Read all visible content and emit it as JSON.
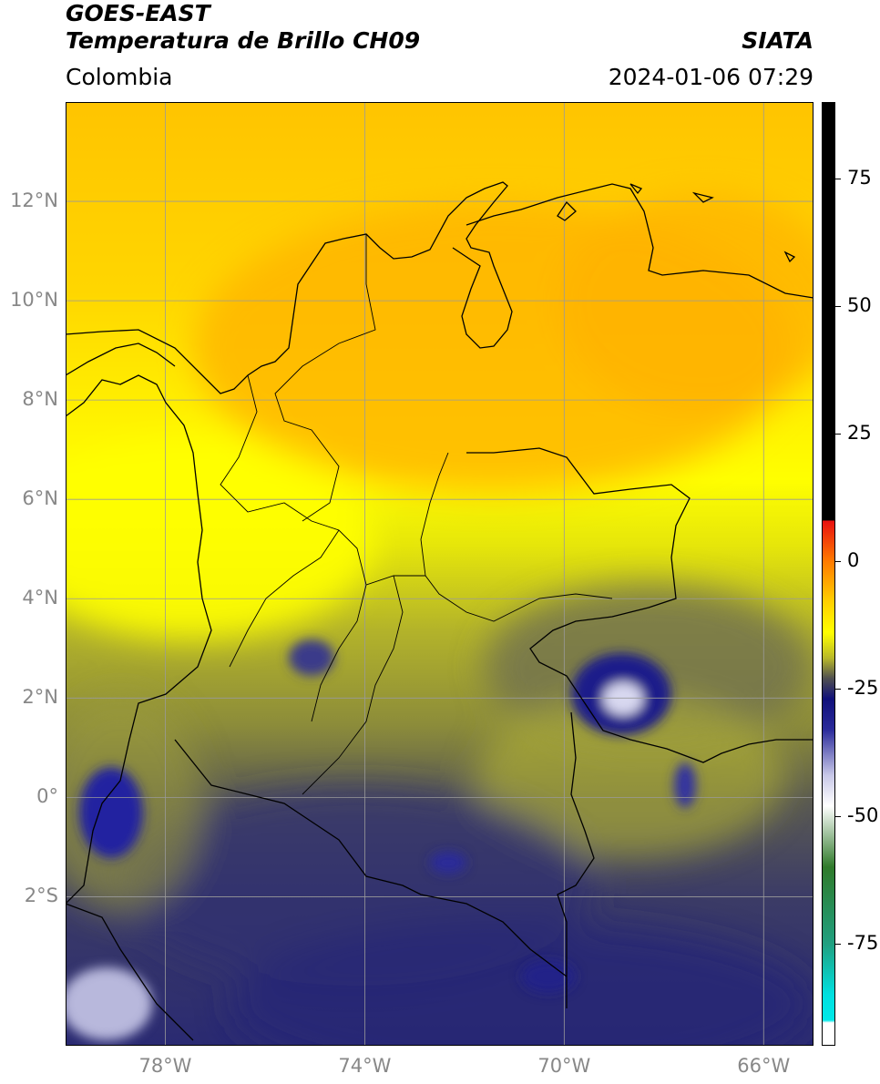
{
  "header": {
    "satellite": "GOES-EAST",
    "product": "Temperatura de Brillo CH09",
    "region": "Colombia",
    "agency": "SIATA",
    "datetime": "2024-01-06 07:29"
  },
  "map": {
    "lon_range": [
      -80,
      -65
    ],
    "lat_range": [
      -5,
      14
    ],
    "lat_ticks": [
      {
        "value": 12,
        "label": "12°N"
      },
      {
        "value": 10,
        "label": "10°N"
      },
      {
        "value": 8,
        "label": "8°N"
      },
      {
        "value": 6,
        "label": "6°N"
      },
      {
        "value": 4,
        "label": "4°N"
      },
      {
        "value": 2,
        "label": "2°N"
      },
      {
        "value": 0,
        "label": "0°"
      },
      {
        "value": -2,
        "label": "2°S"
      }
    ],
    "lon_ticks": [
      {
        "value": -78,
        "label": "78°W"
      },
      {
        "value": -74,
        "label": "74°W"
      },
      {
        "value": -70,
        "label": "70°W"
      },
      {
        "value": -66,
        "label": "66°W"
      }
    ],
    "colors": {
      "coast": "#000000",
      "grid": "#9a9a9a"
    }
  },
  "colorbar": {
    "range": [
      -95,
      90
    ],
    "ticks": [
      {
        "value": 75,
        "label": "75"
      },
      {
        "value": 50,
        "label": "50"
      },
      {
        "value": 25,
        "label": "25"
      },
      {
        "value": 0,
        "label": "0"
      },
      {
        "value": -25,
        "label": "-25"
      },
      {
        "value": -50,
        "label": "-50"
      },
      {
        "value": -75,
        "label": "-75"
      }
    ],
    "stops": [
      {
        "value": 90,
        "color": "#000000"
      },
      {
        "value": 8,
        "color": "#000000"
      },
      {
        "value": 7.9,
        "color": "#e81010"
      },
      {
        "value": 0,
        "color": "#ff7a00"
      },
      {
        "value": -8,
        "color": "#ffd000"
      },
      {
        "value": -14,
        "color": "#ffff00"
      },
      {
        "value": -19,
        "color": "#b8b82a"
      },
      {
        "value": -23,
        "color": "#505050"
      },
      {
        "value": -27,
        "color": "#10107a"
      },
      {
        "value": -33,
        "color": "#2a2a9a"
      },
      {
        "value": -42,
        "color": "#c8c8e8"
      },
      {
        "value": -48,
        "color": "#ffffff"
      },
      {
        "value": -60,
        "color": "#2f7a2a"
      },
      {
        "value": -75,
        "color": "#20a080"
      },
      {
        "value": -85,
        "color": "#00e0e0"
      },
      {
        "value": -90,
        "color": "#00e8e8"
      },
      {
        "value": -90.5,
        "color": "#ffffff"
      },
      {
        "value": -95,
        "color": "#ffffff"
      }
    ]
  }
}
